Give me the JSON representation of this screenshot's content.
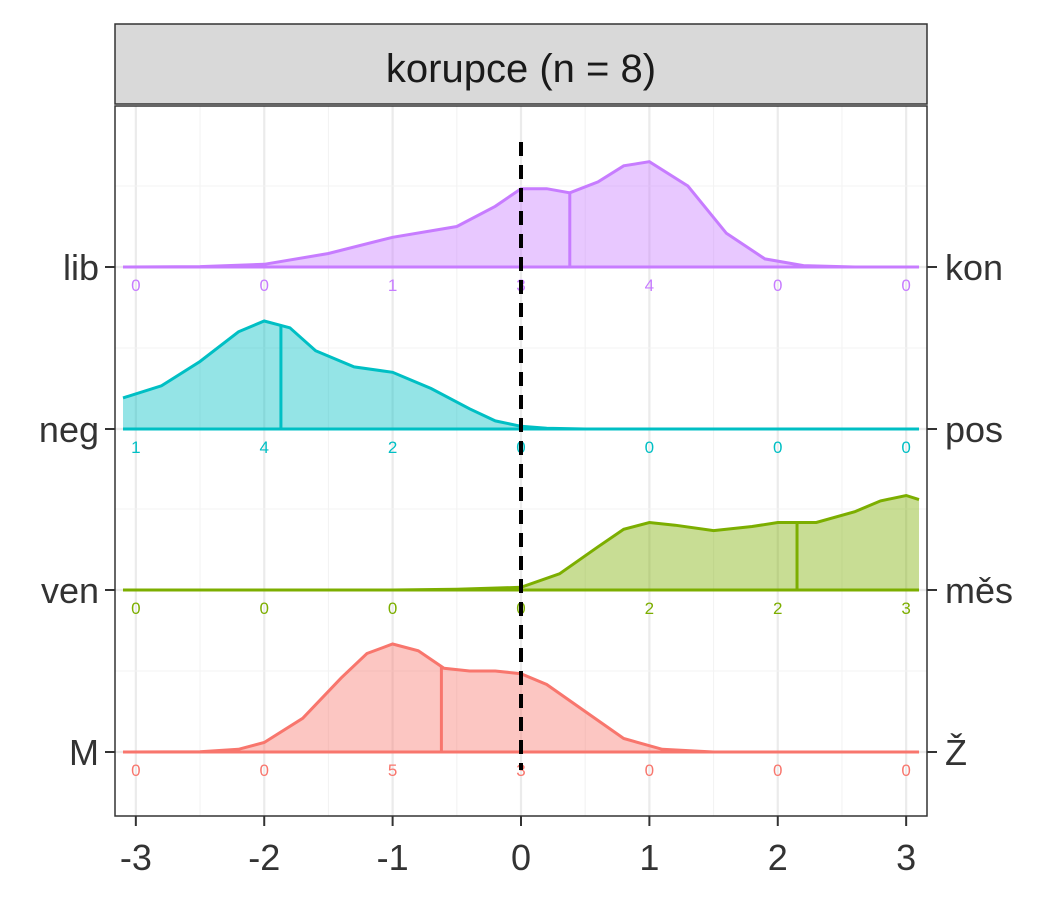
{
  "chart_data": {
    "type": "area",
    "title": "korupce (n = 8)",
    "xlim": [
      -3.1,
      3.1
    ],
    "x_ticks": [
      -3,
      -2,
      -1,
      0,
      1,
      2,
      3
    ],
    "x_tick_labels": [
      "-3",
      "-2",
      "-1",
      "0",
      "1",
      "2",
      "3"
    ],
    "count_positions": [
      -3,
      -2,
      -1,
      0,
      1,
      2,
      3
    ],
    "reference_line_x": 0,
    "grid": true,
    "series": [
      {
        "left_label": "lib",
        "right_label": "kon",
        "color": "#c77cff",
        "mean": 0.38,
        "counts": [
          0,
          0,
          1,
          3,
          4,
          0,
          0
        ],
        "density": [
          [
            -3.1,
            0
          ],
          [
            -2.5,
            0.003
          ],
          [
            -2.0,
            0.02
          ],
          [
            -1.5,
            0.1
          ],
          [
            -1.0,
            0.22
          ],
          [
            -0.5,
            0.3
          ],
          [
            -0.2,
            0.45
          ],
          [
            0.0,
            0.58
          ],
          [
            0.2,
            0.58
          ],
          [
            0.38,
            0.55
          ],
          [
            0.6,
            0.63
          ],
          [
            0.8,
            0.75
          ],
          [
            1.0,
            0.78
          ],
          [
            1.3,
            0.6
          ],
          [
            1.6,
            0.25
          ],
          [
            1.9,
            0.06
          ],
          [
            2.2,
            0.01
          ],
          [
            2.6,
            0
          ],
          [
            3.1,
            0
          ]
        ]
      },
      {
        "left_label": "neg",
        "right_label": "pos",
        "color": "#00bfc4",
        "mean": -1.87,
        "counts": [
          1,
          4,
          2,
          0,
          0,
          0,
          0
        ],
        "density": [
          [
            -3.1,
            0.23
          ],
          [
            -2.8,
            0.32
          ],
          [
            -2.5,
            0.5
          ],
          [
            -2.2,
            0.72
          ],
          [
            -2.0,
            0.8
          ],
          [
            -1.8,
            0.75
          ],
          [
            -1.6,
            0.58
          ],
          [
            -1.3,
            0.46
          ],
          [
            -1.0,
            0.42
          ],
          [
            -0.7,
            0.3
          ],
          [
            -0.4,
            0.15
          ],
          [
            -0.2,
            0.06
          ],
          [
            0.0,
            0.02
          ],
          [
            0.2,
            0.005
          ],
          [
            0.5,
            0
          ],
          [
            3.1,
            0
          ]
        ]
      },
      {
        "left_label": "ven",
        "right_label": "měs",
        "color": "#7cae00",
        "mean": 2.15,
        "counts": [
          0,
          0,
          0,
          0,
          2,
          2,
          3
        ],
        "density": [
          [
            -3.1,
            0
          ],
          [
            -1.0,
            0
          ],
          [
            -0.5,
            0.005
          ],
          [
            0.0,
            0.02
          ],
          [
            0.3,
            0.12
          ],
          [
            0.6,
            0.32
          ],
          [
            0.8,
            0.45
          ],
          [
            1.0,
            0.5
          ],
          [
            1.2,
            0.48
          ],
          [
            1.5,
            0.44
          ],
          [
            1.8,
            0.47
          ],
          [
            2.0,
            0.5
          ],
          [
            2.3,
            0.5
          ],
          [
            2.6,
            0.58
          ],
          [
            2.8,
            0.66
          ],
          [
            3.0,
            0.7
          ],
          [
            3.1,
            0.67
          ]
        ]
      },
      {
        "left_label": "M",
        "right_label": "Ž",
        "color": "#f8766d",
        "mean": -0.62,
        "counts": [
          0,
          0,
          5,
          3,
          0,
          0,
          0
        ],
        "density": [
          [
            -3.1,
            0
          ],
          [
            -2.5,
            0.002
          ],
          [
            -2.2,
            0.02
          ],
          [
            -2.0,
            0.07
          ],
          [
            -1.7,
            0.25
          ],
          [
            -1.4,
            0.55
          ],
          [
            -1.2,
            0.73
          ],
          [
            -1.0,
            0.8
          ],
          [
            -0.8,
            0.75
          ],
          [
            -0.6,
            0.62
          ],
          [
            -0.4,
            0.6
          ],
          [
            -0.2,
            0.6
          ],
          [
            0.0,
            0.58
          ],
          [
            0.2,
            0.5
          ],
          [
            0.5,
            0.3
          ],
          [
            0.8,
            0.1
          ],
          [
            1.1,
            0.02
          ],
          [
            1.5,
            0
          ],
          [
            3.1,
            0
          ]
        ]
      }
    ]
  }
}
